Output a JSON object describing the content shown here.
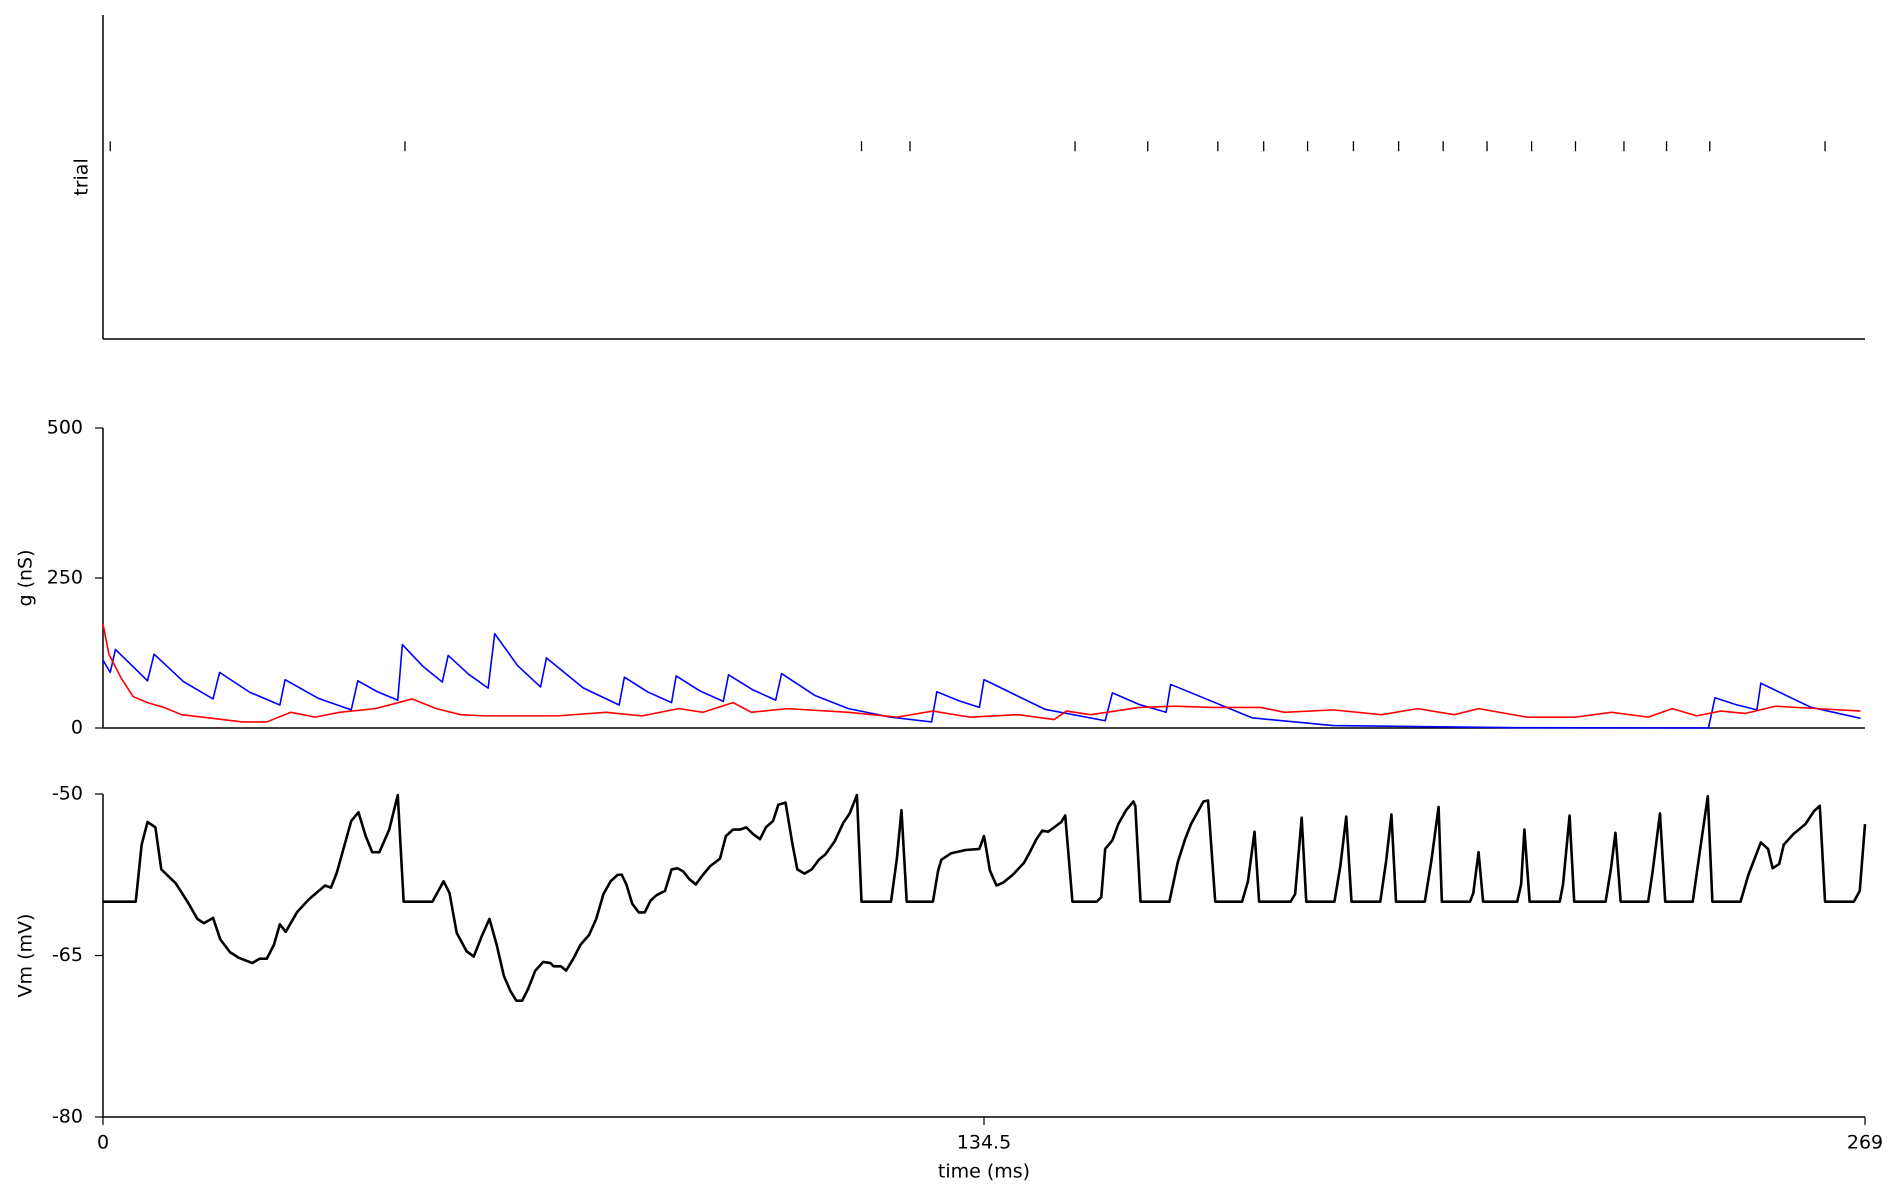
{
  "chart_data": [
    {
      "type": "eventplot",
      "ylabel": "trial",
      "xlim": [
        0,
        269
      ],
      "color": "#000000",
      "x": [
        1.1,
        46.1,
        115.8,
        123.2,
        148.4,
        159.5,
        170.2,
        177.2,
        183.9,
        190.9,
        197.8,
        204.6,
        211.3,
        218.1,
        224.8,
        232.2,
        238.7,
        245.3,
        262.9
      ]
    },
    {
      "type": "line",
      "ylabel": "g (nS)",
      "xlim": [
        0,
        269
      ],
      "ylim": [
        0,
        500
      ],
      "yticks": [
        0,
        250,
        500
      ],
      "series": [
        {
          "color": "#0000ff",
          "x": [
            0.0,
            1.1,
            1.9,
            6.8,
            7.8,
            12.3,
            16.8,
            17.8,
            22.4,
            27.0,
            27.8,
            32.9,
            37.9,
            38.9,
            41.9,
            45.0,
            45.7,
            48.8,
            51.8,
            52.7,
            55.8,
            58.8,
            59.8,
            63.3,
            66.8,
            67.7,
            73.3,
            78.8,
            79.6,
            83.2,
            86.8,
            87.5,
            91.1,
            94.7,
            95.5,
            99.1,
            102.7,
            103.6,
            108.7,
            113.8,
            120.2,
            126.5,
            127.3,
            130.6,
            133.8,
            134.5,
            143.8,
            153.0,
            154.1,
            158.2,
            162.3,
            163.0,
            175.4,
            187.8,
            215.5,
            245.1,
            246.1,
            249.3,
            252.5,
            253.1,
            260.7,
            268.3
          ],
          "values": [
            112.9,
            92.7,
            131.0,
            78.6,
            123.0,
            77.2,
            48.4,
            92.7,
            59.6,
            38.3,
            80.6,
            49.3,
            30.2,
            78.6,
            60.4,
            46.4,
            139.1,
            103.2,
            76.6,
            121.0,
            89.7,
            66.5,
            157.2,
            103.8,
            68.5,
            116.9,
            66.9,
            38.3,
            84.7,
            59.9,
            42.3,
            86.7,
            62.0,
            44.4,
            88.7,
            64.2,
            46.4,
            90.7,
            54.1,
            32.3,
            18.1,
            10.1,
            60.5,
            45.6,
            34.3,
            80.6,
            31.2,
            12.1,
            58.5,
            39.2,
            26.2,
            72.6,
            17.0,
            4.0,
            0.5,
            0.1,
            50.4,
            39.0,
            30.2,
            74.6,
            34.7,
            16.1
          ]
        },
        {
          "color": "#ff0000",
          "x": [
            0.0,
            0.9,
            2.8,
            4.6,
            6.8,
            9.3,
            12.0,
            16.7,
            21.3,
            25.0,
            28.7,
            32.4,
            36.1,
            41.6,
            47.2,
            50.9,
            54.6,
            58.3,
            63.8,
            69.4,
            76.8,
            82.3,
            87.9,
            91.6,
            96.2,
            99.0,
            104.5,
            113.8,
            121.2,
            126.7,
            132.3,
            139.7,
            145.2,
            147.1,
            150.8,
            158.2,
            163.7,
            169.3,
            176.7,
            180.4,
            187.8,
            195.2,
            200.7,
            206.3,
            210.0,
            217.4,
            224.8,
            230.3,
            235.9,
            239.6,
            243.3,
            247.0,
            250.7,
            255.3,
            261.8,
            268.3
          ],
          "values": [
            173.4,
            123.0,
            82.7,
            52.4,
            42.3,
            34.3,
            22.2,
            16.1,
            10.1,
            10.1,
            26.2,
            18.1,
            26.2,
            32.3,
            48.4,
            32.3,
            22.2,
            20.2,
            20.2,
            20.2,
            26.2,
            20.2,
            32.3,
            26.2,
            42.3,
            26.2,
            32.3,
            26.2,
            18.1,
            28.2,
            18.1,
            22.2,
            14.1,
            28.2,
            22.2,
            34.3,
            36.3,
            34.3,
            34.3,
            26.2,
            30.2,
            22.2,
            32.3,
            22.2,
            32.3,
            18.1,
            18.1,
            26.2,
            18.1,
            32.3,
            20.2,
            28.2,
            24.2,
            36.3,
            32.3,
            28.2
          ]
        }
      ]
    },
    {
      "type": "line",
      "xlabel": "time (ms)",
      "ylabel": "Vm (mV)",
      "xlim": [
        0,
        269
      ],
      "xticks": [
        0,
        134.5,
        269
      ],
      "ylim": [
        -80,
        -50
      ],
      "yticks": [
        -80,
        -65,
        -50
      ],
      "series": [
        {
          "color": "#000000",
          "x": [
            0.0,
            5.0,
            5.9,
            6.8,
            8.0,
            8.9,
            11.1,
            13.0,
            14.4,
            15.4,
            16.8,
            17.9,
            19.4,
            20.7,
            22.8,
            23.9,
            25.0,
            26.1,
            27.0,
            27.9,
            29.6,
            31.4,
            33.9,
            34.8,
            35.7,
            37.9,
            39.0,
            40.1,
            41.1,
            42.2,
            43.7,
            45.0,
            45.9,
            50.3,
            52.0,
            52.9,
            54.0,
            55.5,
            56.6,
            57.9,
            59.0,
            60.1,
            61.2,
            62.2,
            63.1,
            64.0,
            64.9,
            66.0,
            67.2,
            68.3,
            68.8,
            69.9,
            70.7,
            71.8,
            72.9,
            74.2,
            75.3,
            76.4,
            77.5,
            78.6,
            79.2,
            79.9,
            80.8,
            81.8,
            82.7,
            83.6,
            84.5,
            85.8,
            86.8,
            87.7,
            88.6,
            89.5,
            90.5,
            91.6,
            92.7,
            94.2,
            95.1,
            96.2,
            97.3,
            98.2,
            99.2,
            100.3,
            101.2,
            102.3,
            103.1,
            104.2,
            105.3,
            106.0,
            107.1,
            108.2,
            109.3,
            110.3,
            111.7,
            113.0,
            114.0,
            115.1,
            115.8,
            120.3,
            121.2,
            121.9,
            122.7,
            126.7,
            127.5,
            128.0,
            129.5,
            131.7,
            133.8,
            134.5,
            135.4,
            136.4,
            137.5,
            138.9,
            140.6,
            141.5,
            142.5,
            143.4,
            144.3,
            145.2,
            146.3,
            146.9,
            148.0,
            151.7,
            152.4,
            153.0,
            154.1,
            155.0,
            156.2,
            157.3,
            157.6,
            158.4,
            162.8,
            164.1,
            165.2,
            166.1,
            168.0,
            168.7,
            169.8,
            173.9,
            174.8,
            175.8,
            176.5,
            181.3,
            182.0,
            183.0,
            183.7,
            188.0,
            188.9,
            189.8,
            190.6,
            195.0,
            195.9,
            196.7,
            197.4,
            201.8,
            202.8,
            203.9,
            204.4,
            208.7,
            209.2,
            210.0,
            210.7,
            215.9,
            216.5,
            217.0,
            217.8,
            222.4,
            222.9,
            223.9,
            224.6,
            229.4,
            230.2,
            230.9,
            231.7,
            235.9,
            236.6,
            237.7,
            238.5,
            242.7,
            243.7,
            245.0,
            245.7,
            250.0,
            251.2,
            253.1,
            254.2,
            254.9,
            255.9,
            256.6,
            258.1,
            259.9,
            261.2,
            262.1,
            262.9,
            267.3,
            268.2,
            269.0
          ],
          "values": [
            -60,
            -60,
            -54.7,
            -52.6,
            -53.1,
            -57.0,
            -58.3,
            -60.1,
            -61.6,
            -62.0,
            -61.5,
            -63.5,
            -64.7,
            -65.2,
            -65.7,
            -65.3,
            -65.3,
            -64.0,
            -62.1,
            -62.8,
            -61.0,
            -59.8,
            -58.5,
            -58.7,
            -57.3,
            -52.5,
            -51.7,
            -53.9,
            -55.4,
            -55.4,
            -53.3,
            -50.1,
            -60,
            -60,
            -58.1,
            -59.2,
            -62.9,
            -64.6,
            -65.1,
            -63.1,
            -61.6,
            -64.0,
            -66.9,
            -68.3,
            -69.2,
            -69.2,
            -68.1,
            -66.4,
            -65.6,
            -65.7,
            -66.0,
            -66.0,
            -66.4,
            -65.3,
            -64.0,
            -63.1,
            -61.6,
            -59.3,
            -58.1,
            -57.5,
            -57.5,
            -58.4,
            -60.2,
            -61.0,
            -61.0,
            -59.9,
            -59.4,
            -59.0,
            -57.0,
            -56.9,
            -57.2,
            -57.9,
            -58.4,
            -57.5,
            -56.7,
            -56.0,
            -53.9,
            -53.3,
            -53.3,
            -53.1,
            -53.7,
            -54.2,
            -53.1,
            -52.5,
            -51.0,
            -50.8,
            -54.8,
            -57.0,
            -57.4,
            -57.0,
            -56.1,
            -55.6,
            -54.4,
            -52.7,
            -51.8,
            -50.1,
            -60,
            -60,
            -56.0,
            -51.5,
            -60,
            -60,
            -57.1,
            -56.1,
            -55.5,
            -55.2,
            -55.1,
            -53.9,
            -57.1,
            -58.5,
            -58.2,
            -57.5,
            -56.4,
            -55.4,
            -54.2,
            -53.4,
            -53.5,
            -53.1,
            -52.6,
            -52.0,
            -60,
            -60,
            -59.6,
            -55.1,
            -54.3,
            -52.8,
            -51.5,
            -50.7,
            -51.1,
            -60,
            -60,
            -56.3,
            -54.2,
            -52.8,
            -50.7,
            -50.6,
            -60,
            -60,
            -58.1,
            -53.5,
            -60,
            -60,
            -59.3,
            -52.2,
            -60,
            -60,
            -56.7,
            -52.1,
            -60,
            -60,
            -56.2,
            -51.9,
            -60,
            -60,
            -56.2,
            -51.2,
            -60,
            -60,
            -59.2,
            -55.4,
            -60,
            -60,
            -58.4,
            -53.3,
            -60,
            -60,
            -58.4,
            -52.0,
            -60,
            -60,
            -57.0,
            -53.6,
            -60,
            -60,
            -57.1,
            -51.8,
            -60,
            -60,
            -55.7,
            -50.2,
            -60,
            -60,
            -57.5,
            -54.5,
            -55.1,
            -56.9,
            -56.5,
            -54.7,
            -53.7,
            -52.8,
            -51.6,
            -51.1,
            -60,
            -60,
            -59.0,
            -52.8
          ]
        }
      ]
    }
  ]
}
